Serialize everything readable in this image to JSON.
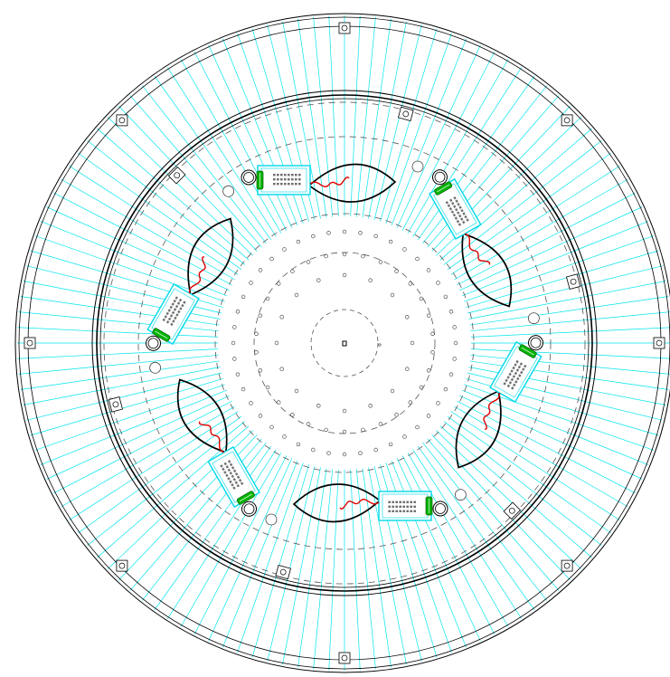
{
  "drawing": {
    "colors": {
      "background": "#ffffff",
      "rays": "#00e5ee",
      "outline": "#000000",
      "dashed": "#555555",
      "card": "#00d8e8",
      "wire": "#dd0000",
      "connector": "#00b400",
      "component": "#6f6f6f"
    },
    "ray_count": 132,
    "inner_hole_count": 16,
    "middle_hole_count": 30,
    "outer_hole_count": 44,
    "outer_bracket_count": 8,
    "inner_bracket_count": 6,
    "assembly_count": 6
  }
}
